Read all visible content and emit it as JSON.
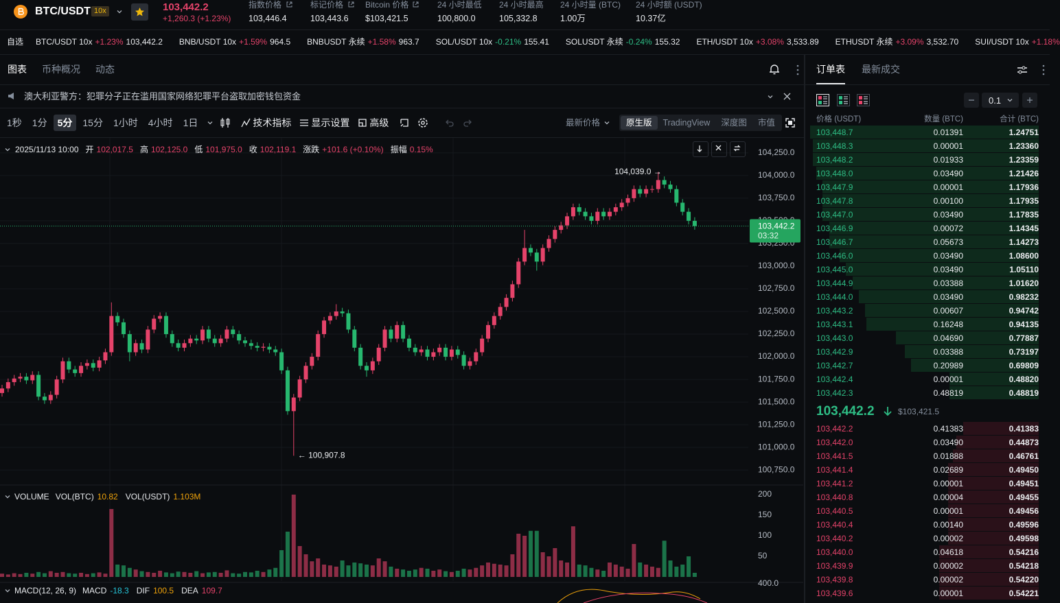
{
  "header": {
    "symbol": "BTC/USDT",
    "leverage": "10x",
    "price": "103,442.2",
    "change": "+1,260.3 (+1.23%)",
    "stats": [
      {
        "label": "指数价格",
        "value": "103,446.4"
      },
      {
        "label": "标记价格",
        "value": "103,443.6"
      },
      {
        "label": "Bitcoin 价格",
        "value": "$103,421.5"
      },
      {
        "label": "24 小时最低",
        "value": "100,800.0"
      },
      {
        "label": "24 小时最高",
        "value": "105,332.8"
      },
      {
        "label": "24 小时量 (BTC)",
        "value": "1.00万"
      },
      {
        "label": "24 小时额 (USDT)",
        "value": "10.37亿"
      }
    ]
  },
  "ticker": {
    "label": "自选",
    "items": [
      {
        "name": "BTC/USDT 10x",
        "change": "+1.23%",
        "price": "103,442.2"
      },
      {
        "name": "BNB/USDT 10x",
        "change": "+1.59%",
        "price": "964.5"
      },
      {
        "name": "BNBUSDT 永续",
        "change": "+1.58%",
        "price": "963.7"
      },
      {
        "name": "SOL/USDT 10x",
        "change": "-0.21%",
        "price": "155.41"
      },
      {
        "name": "SOLUSDT 永续",
        "change": "-0.24%",
        "price": "155.32"
      },
      {
        "name": "ETH/USDT 10x",
        "change": "+3.08%",
        "price": "3,533.89"
      },
      {
        "name": "ETHUSDT 永续",
        "change": "+3.09%",
        "price": "3,532.70"
      },
      {
        "name": "SUI/USDT 10x",
        "change": "+1.18%"
      }
    ]
  },
  "chart_tabs": [
    "图表",
    "币种概况",
    "动态"
  ],
  "notice": "澳大利亚警方：犯罪分子正在滥用国家网络犯罪平台盗取加密钱包资金",
  "toolbar": {
    "intervals": [
      {
        "label": "1秒"
      },
      {
        "label": "1分"
      },
      {
        "label": "5分",
        "active": true
      },
      {
        "label": "15分"
      },
      {
        "label": "1小时"
      },
      {
        "label": "4小时"
      },
      {
        "label": "1日"
      }
    ],
    "tools": [
      "技术指标",
      "显示设置",
      "高级"
    ],
    "price_type": "最新价格",
    "views": [
      {
        "label": "原生版",
        "active": true
      },
      {
        "label": "TradingView"
      },
      {
        "label": "深度图"
      },
      {
        "label": "市值"
      }
    ]
  },
  "chart_data": {
    "type": "candlestick",
    "date": "2025/11/13 10:00",
    "ohlc_info": [
      {
        "label": "开",
        "value": "102,017.5"
      },
      {
        "label": "高",
        "value": "102,125.0"
      },
      {
        "label": "低",
        "value": "101,975.0"
      },
      {
        "label": "收",
        "value": "102,119.1"
      },
      {
        "label": "涨跌",
        "value": "+101.6 (+0.10%)"
      },
      {
        "label": "振幅",
        "value": "0.15%"
      }
    ],
    "ylim": [
      100600,
      104385
    ],
    "yticks": [
      {
        "value": 104250,
        "label": "104,250.0"
      },
      {
        "value": 104000,
        "label": "104,000.0"
      },
      {
        "value": 103750,
        "label": "103,750.0"
      },
      {
        "value": 103500,
        "label": "103,500.0"
      },
      {
        "value": 103250,
        "label": "103,250.0"
      },
      {
        "value": 103000,
        "label": "103,000.0"
      },
      {
        "value": 102750,
        "label": "102,750.0"
      },
      {
        "value": 102500,
        "label": "102,500.0"
      },
      {
        "value": 102250,
        "label": "102,250.0"
      },
      {
        "value": 102000,
        "label": "102,000.0"
      },
      {
        "value": 101750,
        "label": "101,750.0"
      },
      {
        "value": 101500,
        "label": "101,500.0"
      },
      {
        "value": 101250,
        "label": "101,250.0"
      },
      {
        "value": 101000,
        "label": "101,000.0"
      },
      {
        "value": 100750,
        "label": "100,750.0"
      }
    ],
    "colors": {
      "up": "#e5436a",
      "down": "#27b86f"
    },
    "open": [
      101600,
      101650,
      101720,
      101760,
      101780,
      101740,
      101800,
      101560,
      101520,
      101580,
      101750,
      101950,
      101860,
      101820,
      101900,
      101930,
      101880,
      101960,
      102050,
      102450,
      102380,
      102250,
      102050,
      102150,
      102080,
      102300,
      102420,
      102450,
      102250,
      102150,
      102100,
      102150,
      102200,
      102180,
      102300,
      102200,
      102150,
      102200,
      102300,
      102250,
      102180,
      102150,
      102120,
      102100,
      102110,
      102080,
      102050,
      101850,
      101400,
      101550,
      101750,
      101900,
      102000,
      102250,
      102400,
      102450,
      102500,
      102480,
      102300,
      102100,
      101900,
      101850,
      101950,
      102100,
      102300,
      102200,
      102350,
      102200,
      102100,
      102050,
      102080,
      102000,
      102050,
      102100,
      102000,
      102080,
      102020,
      101900,
      101950,
      102050,
      102200,
      102350,
      102450,
      102550,
      102650,
      102800,
      103050,
      103200,
      103150,
      103050,
      103200,
      103300,
      103400,
      103450,
      103550,
      103650,
      103600,
      103550,
      103500,
      103600,
      103550,
      103600,
      103650,
      103700,
      103750,
      103850,
      103800,
      103850,
      103850,
      103950,
      103900,
      103850,
      103700,
      103600,
      103500
    ],
    "high": [
      101690,
      101760,
      101800,
      101820,
      101820,
      101840,
      101840,
      101600,
      101620,
      101790,
      101990,
      101990,
      101900,
      101940,
      101970,
      101970,
      102000,
      102090,
      102600,
      102490,
      102420,
      102290,
      102190,
      102190,
      102340,
      102460,
      102490,
      102490,
      102290,
      102190,
      102190,
      102240,
      102240,
      102340,
      102340,
      102240,
      102240,
      102340,
      102340,
      102290,
      102220,
      102190,
      102160,
      102150,
      102150,
      102120,
      102090,
      101890,
      101590,
      101790,
      101940,
      102040,
      102290,
      102440,
      102490,
      102580,
      102540,
      102520,
      102340,
      102140,
      101940,
      101990,
      102140,
      102340,
      102340,
      102390,
      102390,
      102240,
      102140,
      102120,
      102120,
      102090,
      102140,
      102140,
      102120,
      102120,
      102060,
      101990,
      102090,
      102240,
      102390,
      102490,
      102590,
      102690,
      102840,
      103090,
      103400,
      103240,
      103190,
      103240,
      103340,
      103440,
      103490,
      103590,
      103690,
      103690,
      103640,
      103590,
      103640,
      103640,
      103640,
      103690,
      103740,
      103790,
      103890,
      103890,
      103890,
      103890,
      104039,
      103990,
      103940,
      103890,
      103740,
      103640,
      103540
    ],
    "low": [
      101560,
      101610,
      101680,
      101720,
      101700,
      101700,
      101520,
      101480,
      101480,
      101540,
      101710,
      101820,
      101780,
      101780,
      101860,
      101840,
      101840,
      101920,
      102010,
      102340,
      102210,
      101950,
      102010,
      102040,
      102040,
      102260,
      102380,
      102210,
      102110,
      102060,
      102060,
      102110,
      102140,
      102140,
      102160,
      102110,
      102110,
      102160,
      102210,
      102140,
      102110,
      102080,
      102060,
      102060,
      102040,
      102010,
      101810,
      101360,
      100907.8,
      101510,
      101710,
      101860,
      101960,
      102210,
      102360,
      102410,
      102440,
      102260,
      102060,
      101860,
      101780,
      101810,
      101910,
      102060,
      102160,
      102160,
      102160,
      102060,
      102010,
      102010,
      101960,
      101960,
      102010,
      101960,
      101960,
      101980,
      101860,
      101860,
      101910,
      102010,
      102160,
      102310,
      102410,
      102510,
      102610,
      102760,
      103010,
      103110,
      102950,
      103010,
      103160,
      103260,
      103360,
      103410,
      103510,
      103560,
      103510,
      103460,
      103460,
      103510,
      103510,
      103560,
      103610,
      103660,
      103710,
      103760,
      103760,
      103810,
      103810,
      103860,
      103810,
      103660,
      103560,
      103460,
      103402.2
    ],
    "close": [
      101650,
      101720,
      101760,
      101780,
      101740,
      101800,
      101560,
      101520,
      101580,
      101750,
      101950,
      101860,
      101820,
      101900,
      101930,
      101880,
      101960,
      102050,
      102450,
      102380,
      102250,
      102050,
      102150,
      102080,
      102300,
      102420,
      102450,
      102250,
      102150,
      102100,
      102150,
      102200,
      102180,
      102300,
      102200,
      102150,
      102200,
      102300,
      102250,
      102180,
      102150,
      102120,
      102100,
      102110,
      102080,
      102050,
      101850,
      101400,
      101550,
      101750,
      101900,
      102000,
      102250,
      102400,
      102450,
      102500,
      102480,
      102300,
      102100,
      101900,
      101850,
      101950,
      102100,
      102300,
      102200,
      102350,
      102200,
      102100,
      102050,
      102080,
      102000,
      102050,
      102100,
      102000,
      102080,
      102020,
      101900,
      101950,
      102050,
      102200,
      102350,
      102450,
      102550,
      102650,
      102800,
      103050,
      103200,
      103150,
      103050,
      103200,
      103300,
      103400,
      103450,
      103550,
      103650,
      103600,
      103550,
      103500,
      103600,
      103550,
      103600,
      103650,
      103700,
      103750,
      103850,
      103800,
      103850,
      103850,
      103950,
      103900,
      103850,
      103700,
      103600,
      103500,
      103442.2
    ],
    "last_price": {
      "value": 103442.2,
      "label": "103,442.2"
    },
    "countdown": "03:32",
    "annotations": {
      "high": "104,039.0 →",
      "low": "← 100,907.8"
    },
    "volume": {
      "title": "VOLUME",
      "fields": [
        {
          "label": "VOL(BTC)",
          "value": "10.82"
        },
        {
          "label": "VOL(USDT)",
          "value": "1.103M"
        }
      ],
      "values": [
        8,
        6,
        9,
        7,
        10,
        8,
        12,
        9,
        14,
        10,
        12,
        9,
        8,
        10,
        7,
        9,
        11,
        8,
        165,
        30,
        28,
        22,
        18,
        14,
        12,
        10,
        15,
        11,
        9,
        13,
        12,
        10,
        14,
        9,
        11,
        12,
        10,
        16,
        9,
        8,
        12,
        11,
        15,
        12,
        18,
        22,
        65,
        110,
        200,
        75,
        55,
        38,
        45,
        30,
        28,
        25,
        40,
        28,
        35,
        33,
        30,
        28,
        45,
        38,
        25,
        20,
        18,
        15,
        18,
        22,
        20,
        15,
        18,
        14,
        12,
        15,
        20,
        18,
        22,
        28,
        35,
        32,
        30,
        28,
        55,
        105,
        100,
        112,
        112,
        60,
        50,
        70,
        40,
        35,
        123,
        30,
        28,
        22,
        18,
        15,
        35,
        30,
        25,
        20,
        80,
        35,
        30,
        25,
        22,
        88,
        40,
        25,
        30,
        50,
        10
      ],
      "ylim": [
        0,
        215
      ],
      "yticks": [
        50,
        100,
        150,
        200
      ]
    },
    "macd": {
      "title": "MACD(12, 26, 9)",
      "fields": [
        {
          "label": "MACD",
          "value": "-18.3"
        },
        {
          "label": "DIF",
          "value": "100.5"
        },
        {
          "label": "DEA",
          "value": "109.7"
        }
      ],
      "axis_label": "400.0"
    }
  },
  "order_book": {
    "tabs": [
      "订单表",
      "最新成交"
    ],
    "step": "0.1",
    "columns": [
      "价格 (USDT)",
      "数量 (BTC)",
      "合计 (BTC)"
    ],
    "asks": [
      [
        "103,448.7",
        "0.01391",
        "1.24751"
      ],
      [
        "103,448.3",
        "0.00001",
        "1.23360"
      ],
      [
        "103,448.2",
        "0.01933",
        "1.23359"
      ],
      [
        "103,448.0",
        "0.03490",
        "1.21426"
      ],
      [
        "103,447.9",
        "0.00001",
        "1.17936"
      ],
      [
        "103,447.8",
        "0.00100",
        "1.17935"
      ],
      [
        "103,447.0",
        "0.03490",
        "1.17835"
      ],
      [
        "103,446.9",
        "0.00072",
        "1.14345"
      ],
      [
        "103,446.7",
        "0.05673",
        "1.14273"
      ],
      [
        "103,446.0",
        "0.03490",
        "1.08600"
      ],
      [
        "103,445.0",
        "0.03490",
        "1.05110"
      ],
      [
        "103,444.9",
        "0.03388",
        "1.01620"
      ],
      [
        "103,444.0",
        "0.03490",
        "0.98232"
      ],
      [
        "103,443.2",
        "0.00607",
        "0.94742"
      ],
      [
        "103,443.1",
        "0.16248",
        "0.94135"
      ],
      [
        "103,443.0",
        "0.04690",
        "0.77887"
      ],
      [
        "103,442.9",
        "0.03388",
        "0.73197"
      ],
      [
        "103,442.7",
        "0.20989",
        "0.69809"
      ],
      [
        "103,442.4",
        "0.00001",
        "0.48820"
      ],
      [
        "103,442.3",
        "0.48819",
        "0.48819"
      ]
    ],
    "mid_price": "103,442.2",
    "mid_usd": "$103,421.5",
    "bids": [
      [
        "103,442.2",
        "0.41383",
        "0.41383"
      ],
      [
        "103,442.0",
        "0.03490",
        "0.44873"
      ],
      [
        "103,441.5",
        "0.01888",
        "0.46761"
      ],
      [
        "103,441.4",
        "0.02689",
        "0.49450"
      ],
      [
        "103,441.2",
        "0.00001",
        "0.49451"
      ],
      [
        "103,440.8",
        "0.00004",
        "0.49455"
      ],
      [
        "103,440.5",
        "0.00001",
        "0.49456"
      ],
      [
        "103,440.4",
        "0.00140",
        "0.49596"
      ],
      [
        "103,440.2",
        "0.00002",
        "0.49598"
      ],
      [
        "103,440.0",
        "0.04618",
        "0.54216"
      ],
      [
        "103,439.9",
        "0.00002",
        "0.54218"
      ],
      [
        "103,439.8",
        "0.00002",
        "0.54220"
      ],
      [
        "103,439.6",
        "0.00001",
        "0.54221"
      ]
    ]
  }
}
